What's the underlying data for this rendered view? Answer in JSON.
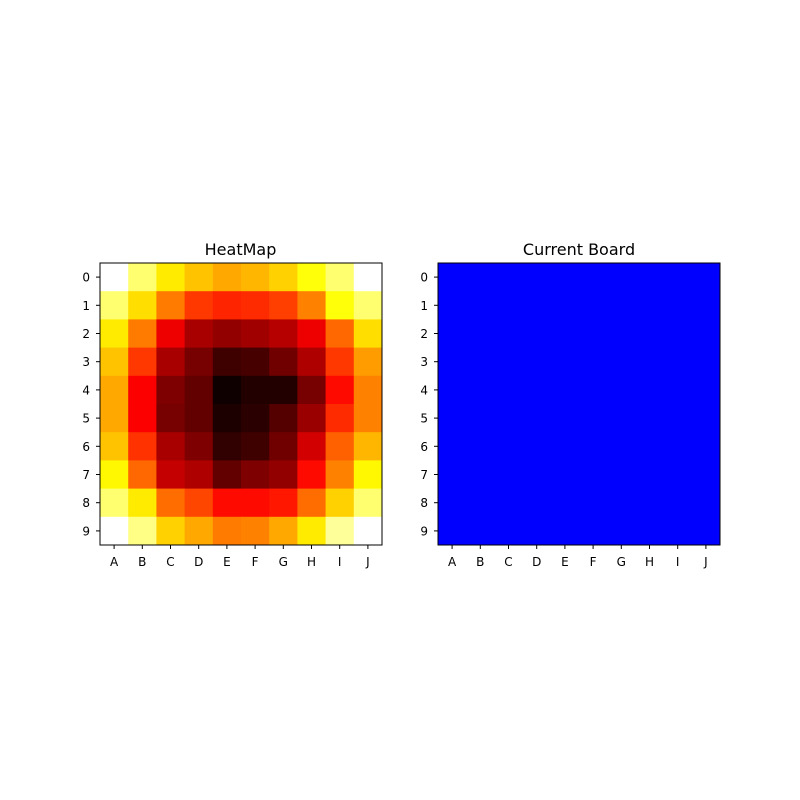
{
  "chart_data": [
    {
      "type": "heatmap",
      "title": "HeatMap",
      "colormap": "hot",
      "x_tick_labels": [
        "A",
        "B",
        "C",
        "D",
        "E",
        "F",
        "G",
        "H",
        "I",
        "J"
      ],
      "y_tick_labels": [
        "0",
        "1",
        "2",
        "3",
        "4",
        "5",
        "6",
        "7",
        "8",
        "9"
      ],
      "values": [
        [
          1.0,
          0.86,
          0.72,
          0.66,
          0.62,
          0.64,
          0.68,
          0.76,
          0.86,
          1.0
        ],
        [
          0.86,
          0.7,
          0.55,
          0.45,
          0.42,
          0.43,
          0.46,
          0.56,
          0.76,
          0.86
        ],
        [
          0.72,
          0.55,
          0.34,
          0.24,
          0.21,
          0.23,
          0.26,
          0.34,
          0.52,
          0.7
        ],
        [
          0.66,
          0.45,
          0.24,
          0.17,
          0.09,
          0.1,
          0.16,
          0.25,
          0.45,
          0.6
        ],
        [
          0.62,
          0.36,
          0.18,
          0.14,
          0.02,
          0.05,
          0.05,
          0.17,
          0.38,
          0.56
        ],
        [
          0.62,
          0.36,
          0.17,
          0.14,
          0.04,
          0.06,
          0.12,
          0.22,
          0.43,
          0.56
        ],
        [
          0.66,
          0.44,
          0.24,
          0.18,
          0.07,
          0.09,
          0.16,
          0.3,
          0.51,
          0.64
        ],
        [
          0.74,
          0.52,
          0.28,
          0.25,
          0.14,
          0.18,
          0.21,
          0.38,
          0.56,
          0.74
        ],
        [
          0.86,
          0.72,
          0.53,
          0.47,
          0.38,
          0.38,
          0.4,
          0.53,
          0.68,
          0.86
        ],
        [
          1.0,
          0.88,
          0.68,
          0.62,
          0.55,
          0.56,
          0.62,
          0.72,
          0.9,
          1.0
        ]
      ]
    },
    {
      "type": "heatmap",
      "title": "Current Board",
      "x_tick_labels": [
        "A",
        "B",
        "C",
        "D",
        "E",
        "F",
        "G",
        "H",
        "I",
        "J"
      ],
      "y_tick_labels": [
        "0",
        "1",
        "2",
        "3",
        "4",
        "5",
        "6",
        "7",
        "8",
        "9"
      ],
      "fill_color": "#0000ff",
      "values": [
        [
          0,
          0,
          0,
          0,
          0,
          0,
          0,
          0,
          0,
          0
        ],
        [
          0,
          0,
          0,
          0,
          0,
          0,
          0,
          0,
          0,
          0
        ],
        [
          0,
          0,
          0,
          0,
          0,
          0,
          0,
          0,
          0,
          0
        ],
        [
          0,
          0,
          0,
          0,
          0,
          0,
          0,
          0,
          0,
          0
        ],
        [
          0,
          0,
          0,
          0,
          0,
          0,
          0,
          0,
          0,
          0
        ],
        [
          0,
          0,
          0,
          0,
          0,
          0,
          0,
          0,
          0,
          0
        ],
        [
          0,
          0,
          0,
          0,
          0,
          0,
          0,
          0,
          0,
          0
        ],
        [
          0,
          0,
          0,
          0,
          0,
          0,
          0,
          0,
          0,
          0
        ],
        [
          0,
          0,
          0,
          0,
          0,
          0,
          0,
          0,
          0,
          0
        ],
        [
          0,
          0,
          0,
          0,
          0,
          0,
          0,
          0,
          0,
          0
        ]
      ]
    }
  ]
}
